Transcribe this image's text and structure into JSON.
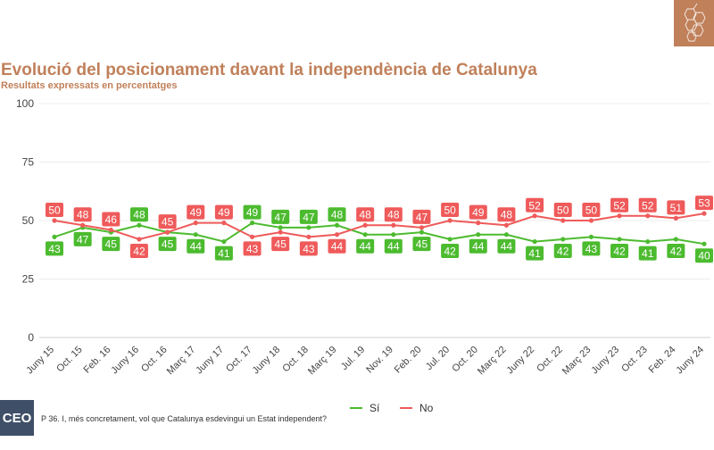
{
  "header": {
    "title": "Evolució del posicionament davant la independència de Catalunya",
    "subtitle": "Resultats expressats en percentatges"
  },
  "footer": {
    "badge": "CEO",
    "question": "P 36. I, més concretament, vol que Catalunya esdevingui un Estat independent?"
  },
  "colors": {
    "accent": "#c0805a",
    "si": "#4cbb2f",
    "no": "#ef5a5a",
    "badge": "#3f4f68"
  },
  "icons": {
    "logo": "grape-cluster-icon"
  },
  "chart_data": {
    "type": "line",
    "title": "Evolució del posicionament davant la independència de Catalunya",
    "subtitle": "Resultats expressats en percentatges",
    "categories": [
      "Juny 15",
      "Oct. 15",
      "Feb. 16",
      "Juny 16",
      "Oct. 16",
      "Març 17",
      "Juny 17",
      "Oct. 17",
      "Juny 18",
      "Oct. 18",
      "Març 19",
      "Jul. 19",
      "Nov. 19",
      "Feb. 20",
      "Jul. 20",
      "Oct. 20",
      "Març 22",
      "Juny 22",
      "Oct. 22",
      "Març 23",
      "Juny 23",
      "Oct. 23",
      "Feb. 24",
      "Juny 24"
    ],
    "series": [
      {
        "name": "Sí",
        "color": "#4cbb2f",
        "values": [
          43,
          47,
          45,
          48,
          45,
          44,
          41,
          49,
          47,
          47,
          48,
          44,
          44,
          45,
          42,
          44,
          44,
          41,
          42,
          43,
          42,
          41,
          42,
          40
        ]
      },
      {
        "name": "No",
        "color": "#ef5a5a",
        "values": [
          50,
          48,
          46,
          42,
          45,
          49,
          49,
          43,
          45,
          43,
          44,
          48,
          48,
          47,
          50,
          49,
          48,
          52,
          50,
          50,
          52,
          52,
          51,
          53
        ]
      }
    ],
    "yticks": [
      0,
      25,
      50,
      75,
      100
    ],
    "ylim": [
      0,
      100
    ],
    "grid": true,
    "legend_position": "bottom"
  }
}
